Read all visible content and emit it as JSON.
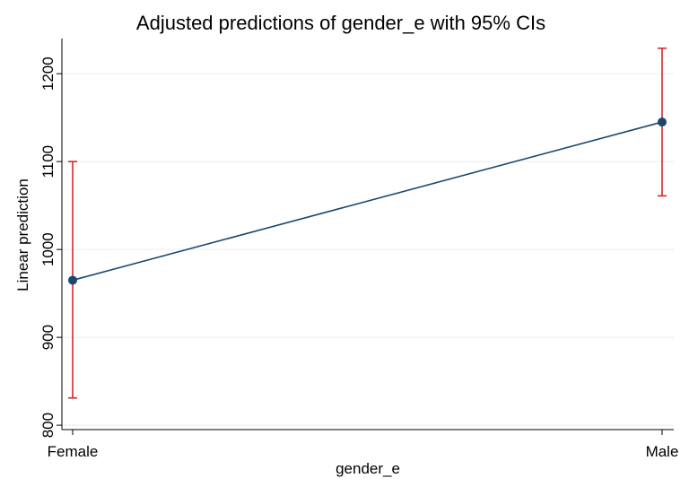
{
  "colors": {
    "background": "#ffffff",
    "line": "#1a476f",
    "marker": "#1a476f",
    "ci": "#d62728",
    "grid": "#eaf2f3",
    "title": "#1a476f",
    "axis": "#000000"
  },
  "chart_data": {
    "type": "line",
    "title": "Adjusted predictions of gender_e with 95% CIs",
    "xlabel": "gender_e",
    "ylabel": "Linear prediction",
    "categories": [
      "Female",
      "Male"
    ],
    "yticks": [
      "800",
      "900",
      "1000",
      "1100",
      "1200"
    ],
    "ylim": [
      795,
      1240
    ],
    "grid": true,
    "legend": "none",
    "series": [
      {
        "values": [
          965,
          1145
        ],
        "ci_lower": [
          831,
          1061
        ],
        "ci_upper": [
          1100,
          1229
        ]
      }
    ]
  }
}
